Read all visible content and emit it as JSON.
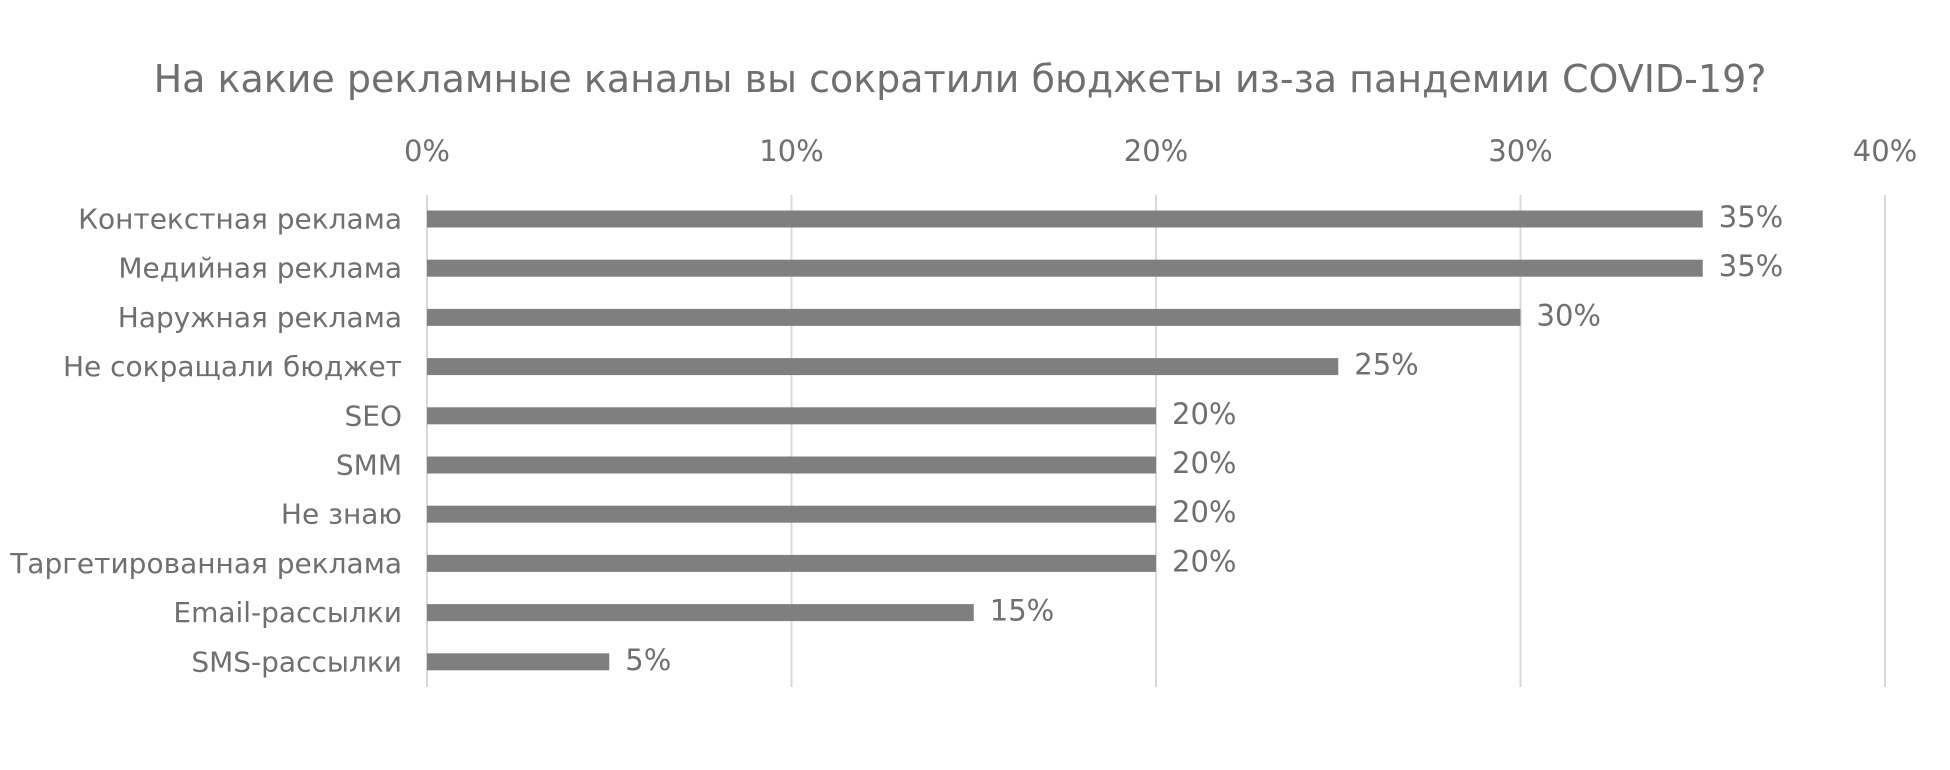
{
  "chart_data": {
    "type": "bar",
    "orientation": "horizontal",
    "title": "На какие рекламные каналы вы сократили бюджеты из-за пандемии COVID-19?",
    "xlabel": "",
    "ylabel": "",
    "categories": [
      "Контекстная реклама",
      "Медийная реклама",
      "Наружная реклама",
      "Не сокращали бюджет",
      "SEO",
      "SMM",
      "Не знаю",
      "Таргетированная реклама",
      "Email-рассылки",
      "SMS-рассылки"
    ],
    "values": [
      35,
      35,
      30,
      25,
      20,
      20,
      20,
      20,
      15,
      5
    ],
    "data_labels": [
      "35%",
      "35%",
      "30%",
      "25%",
      "20%",
      "20%",
      "20%",
      "20%",
      "15%",
      "5%"
    ],
    "xlim": [
      0,
      40
    ],
    "x_ticks": [
      0,
      10,
      20,
      30,
      40
    ],
    "x_tick_labels": [
      "0%",
      "10%",
      "20%",
      "30%",
      "40%"
    ],
    "x_axis_position": "top",
    "grid": true,
    "legend": "none",
    "colors": {
      "bar": "#7f7f7f",
      "grid": "#d9d9d9",
      "text": "#6f6f6f",
      "background": "#ffffff"
    }
  }
}
